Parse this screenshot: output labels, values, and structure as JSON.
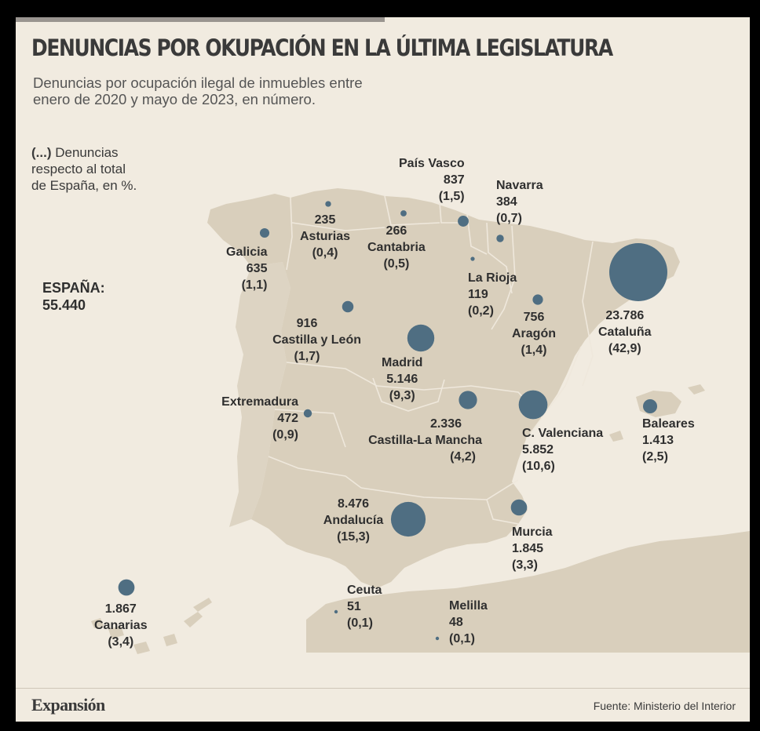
{
  "title": "DENUNCIAS POR OKUPACIÓN EN LA ÚLTIMA LEGISLATURA",
  "subtitle_line1": "Denuncias por ocupación ilegal de inmuebles entre",
  "subtitle_line2": "enero de 2020 y mayo de 2023, en número.",
  "legend": {
    "marker": "(...)",
    "text1": " Denuncias",
    "text2": "respecto al total",
    "text3": "de España, en %."
  },
  "total": {
    "label": "ESPAÑA:",
    "value": "55.440"
  },
  "colors": {
    "background": "#f1ebe0",
    "land": "#d9cfbc",
    "border": "#efe8dc",
    "bubble": "#4f6e82"
  },
  "regions": [
    {
      "id": "galicia",
      "name": "Galicia",
      "value": "635",
      "pct": "(1,1)",
      "count": 635
    },
    {
      "id": "asturias",
      "name": "Asturias",
      "value": "235",
      "pct": "(0,4)",
      "count": 235
    },
    {
      "id": "cantabria",
      "name": "Cantabria",
      "value": "266",
      "pct": "(0,5)",
      "count": 266
    },
    {
      "id": "pais-vasco",
      "name": "País Vasco",
      "value": "837",
      "pct": "(1,5)",
      "count": 837
    },
    {
      "id": "navarra",
      "name": "Navarra",
      "value": "384",
      "pct": "(0,7)",
      "count": 384
    },
    {
      "id": "la-rioja",
      "name": "La Rioja",
      "value": "119",
      "pct": "(0,2)",
      "count": 119
    },
    {
      "id": "aragon",
      "name": "Aragón",
      "value": "756",
      "pct": "(1,4)",
      "count": 756
    },
    {
      "id": "cataluna",
      "name": "Cataluña",
      "value": "23.786",
      "pct": "(42,9)",
      "count": 23786
    },
    {
      "id": "castilla-leon",
      "name": "Castilla y León",
      "value": "916",
      "pct": "(1,7)",
      "count": 916
    },
    {
      "id": "madrid",
      "name": "Madrid",
      "value": "5.146",
      "pct": "(9,3)",
      "count": 5146
    },
    {
      "id": "extremadura",
      "name": "Extremadura",
      "value": "472",
      "pct": "(0,9)",
      "count": 472
    },
    {
      "id": "castilla-la-mancha",
      "name": "Castilla-La Mancha",
      "value": "2.336",
      "pct": "(4,2)",
      "count": 2336
    },
    {
      "id": "c-valenciana",
      "name": "C. Valenciana",
      "value": "5.852",
      "pct": "(10,6)",
      "count": 5852
    },
    {
      "id": "baleares",
      "name": "Baleares",
      "value": "1.413",
      "pct": "(2,5)",
      "count": 1413
    },
    {
      "id": "andalucia",
      "name": "Andalucía",
      "value": "8.476",
      "pct": "(15,3)",
      "count": 8476
    },
    {
      "id": "murcia",
      "name": "Murcia",
      "value": "1.845",
      "pct": "(3,3)",
      "count": 1845
    },
    {
      "id": "canarias",
      "name": "Canarias",
      "value": "1.867",
      "pct": "(3,4)",
      "count": 1867
    },
    {
      "id": "ceuta",
      "name": "Ceuta",
      "value": "51",
      "pct": "(0,1)",
      "count": 51
    },
    {
      "id": "melilla",
      "name": "Melilla",
      "value": "48",
      "pct": "(0,1)",
      "count": 48
    }
  ],
  "footer": {
    "brand": "Expansión",
    "source": "Fuente: Ministerio del Interior"
  }
}
